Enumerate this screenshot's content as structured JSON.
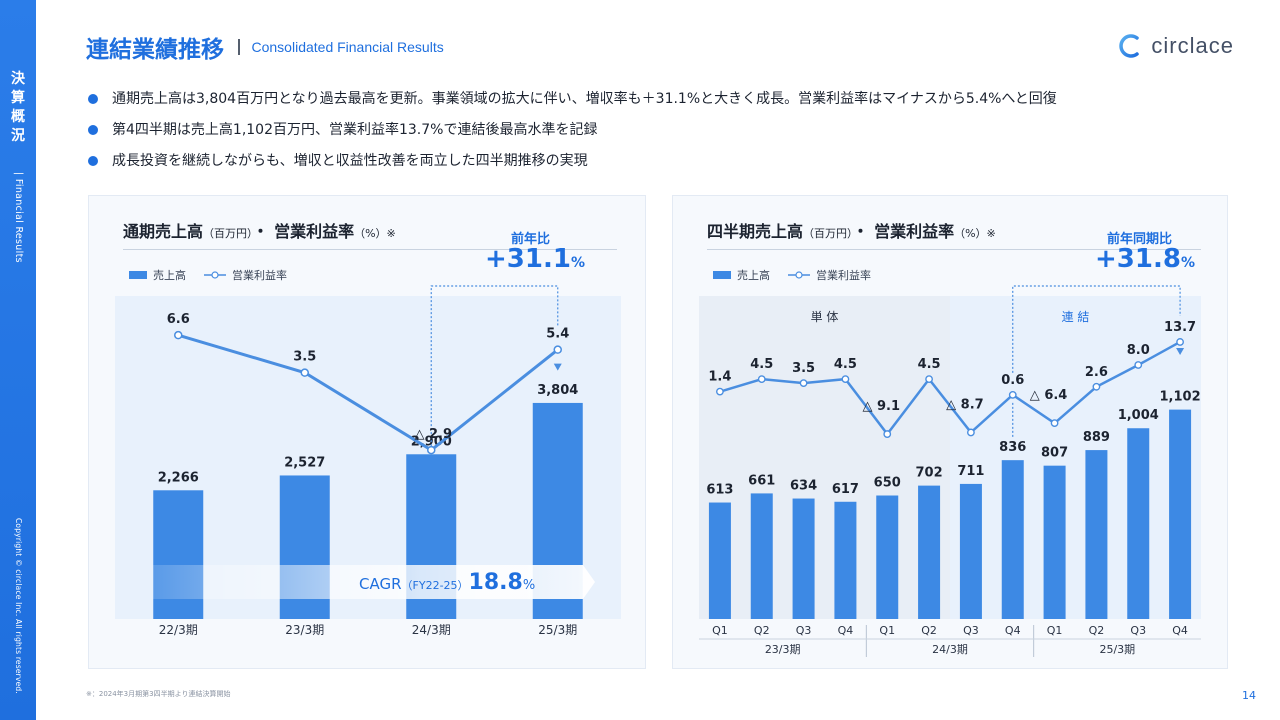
{
  "sidebar": {
    "section_jp": [
      "決",
      "算",
      "概",
      "況"
    ],
    "section_en": "| Financial Results",
    "copyright": "Copyright © circlace Inc. All rights reserved."
  },
  "header": {
    "title_jp": "連結業績推移",
    "title_en": "Consolidated Financial Results"
  },
  "logo": {
    "text": "circlace"
  },
  "bullets": [
    "通期売上高は3,804百万円となり過去最高を更新。事業領域の拡大に伴い、増収率も＋31.1%と大きく成長。営業利益率はマイナスから5.4%へと回復",
    "第4四半期は売上高1,102百万円、営業利益率13.7%で連結後最高水準を記録",
    "成長投資を継続しながらも、増収と収益性改善を両立した四半期推移の実現"
  ],
  "annual": {
    "title": "通期売上高",
    "title_unit": "（百万円）",
    "title_mid": "・ 営業利益率",
    "title_unit2": "（%）※",
    "legend_bar": "売上高",
    "legend_line": "営業利益率",
    "yoy_label": "前年比",
    "yoy_value": "+31.1",
    "yoy_unit": "%",
    "cagr_label": "CAGR",
    "cagr_period": "（FY22-25）",
    "cagr_value": "18.8",
    "cagr_unit": "%"
  },
  "quarterly": {
    "title": "四半期売上高",
    "title_unit": "（百万円）",
    "title_mid": "・ 営業利益率",
    "title_unit2": "（%）※",
    "legend_bar": "売上高",
    "legend_line": "営業利益率",
    "yoy_label": "前年同期比",
    "yoy_value": "+31.8",
    "yoy_unit": "%",
    "region_standalone": "単 体",
    "region_consolidated": "連 結"
  },
  "chart_data": [
    {
      "type": "bar",
      "categories": [
        "22/3期",
        "23/3期",
        "24/3期",
        "25/3期"
      ],
      "series": [
        {
          "name": "売上高",
          "values": [
            2266,
            2527,
            2900,
            3804
          ],
          "labels": [
            "2,266",
            "2,527",
            "2,900",
            "3,804"
          ]
        },
        {
          "name": "営業利益率",
          "values": [
            6.6,
            3.5,
            -2.9,
            5.4
          ],
          "labels": [
            "6.6",
            "3.5",
            "△ 2.9",
            "5.4"
          ]
        }
      ],
      "colors": {
        "bar": "#3d89e4",
        "line": "#4a8ee0"
      }
    },
    {
      "type": "bar",
      "categories": [
        "Q1",
        "Q2",
        "Q3",
        "Q4",
        "Q1",
        "Q2",
        "Q3",
        "Q4",
        "Q1",
        "Q2",
        "Q3",
        "Q4"
      ],
      "groups": [
        {
          "label": "23/3期",
          "count": 4
        },
        {
          "label": "24/3期",
          "count": 4
        },
        {
          "label": "25/3期",
          "count": 4
        }
      ],
      "series": [
        {
          "name": "売上高",
          "values": [
            613,
            661,
            634,
            617,
            650,
            702,
            711,
            836,
            807,
            889,
            1004,
            1102
          ],
          "labels": [
            "613",
            "661",
            "634",
            "617",
            "650",
            "702",
            "711",
            "836",
            "807",
            "889",
            "1,004",
            "1,102"
          ]
        },
        {
          "name": "営業利益率",
          "values": [
            1.4,
            4.5,
            3.5,
            4.5,
            -9.1,
            4.5,
            -8.7,
            0.6,
            -6.4,
            2.6,
            8.0,
            13.7
          ],
          "labels": [
            "1.4",
            "4.5",
            "3.5",
            "4.5",
            "△ 9.1",
            "4.5",
            "△ 8.7",
            "0.6",
            "△ 6.4",
            "2.6",
            "8.0",
            "13.7"
          ]
        }
      ],
      "colors": {
        "bar": "#3d89e4",
        "line": "#4a8ee0"
      }
    }
  ],
  "footnote": "※：2024年3月期第3四半期より連結決算開始",
  "page_number": "14"
}
